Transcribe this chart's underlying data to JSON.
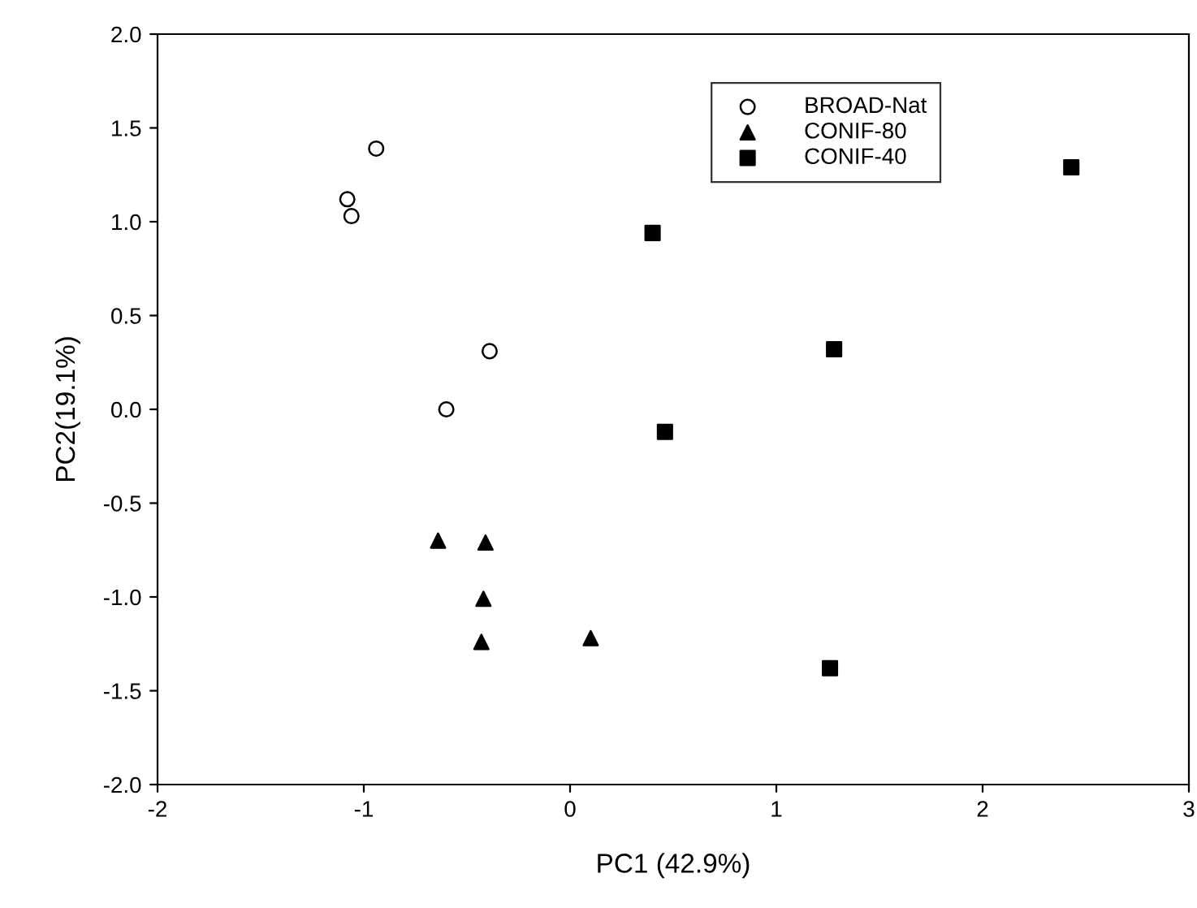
{
  "chart_data": {
    "type": "scatter",
    "xlabel": "PC1 (42.9%)",
    "ylabel": "PC2(19.1%)",
    "xlim": [
      -2,
      3
    ],
    "xticks": [
      -2,
      -1,
      0,
      1,
      2,
      3
    ],
    "ylim": [
      -2.0,
      2.0
    ],
    "yticks": [
      {
        "value": -2,
        "label": "-2.0"
      },
      {
        "value": -1.5,
        "label": "-1.5"
      },
      {
        "value": -1,
        "label": "-1.0"
      },
      {
        "value": -0.5,
        "label": "-0.5"
      },
      {
        "value": 0,
        "label": "0.0"
      },
      {
        "value": 0.5,
        "label": "0.5"
      },
      {
        "value": 1,
        "label": "1.0"
      },
      {
        "value": 1.5,
        "label": "1.5"
      },
      {
        "value": 2,
        "label": "2.0"
      }
    ],
    "grid": false,
    "legend": "top right",
    "series": [
      {
        "name": "BROAD-Nat",
        "color": "#000000",
        "marker": "circle",
        "x": [
          -0.94,
          -1.08,
          -1.06,
          -0.39,
          -0.6
        ],
        "values": [
          1.39,
          1.12,
          1.03,
          0.31,
          0.0
        ]
      },
      {
        "name": "CONIF-80",
        "color": "#000000",
        "marker": "triangle",
        "x": [
          -0.64,
          -0.41,
          -0.42,
          -0.43,
          0.1
        ],
        "values": [
          -0.7,
          -0.71,
          -1.01,
          -1.24,
          -1.22
        ]
      },
      {
        "name": "CONIF-40",
        "color": "#000000",
        "marker": "square",
        "x": [
          0.4,
          2.43,
          1.28,
          0.46,
          1.26
        ],
        "values": [
          0.94,
          1.29,
          0.32,
          -0.12,
          -1.38
        ]
      }
    ]
  }
}
